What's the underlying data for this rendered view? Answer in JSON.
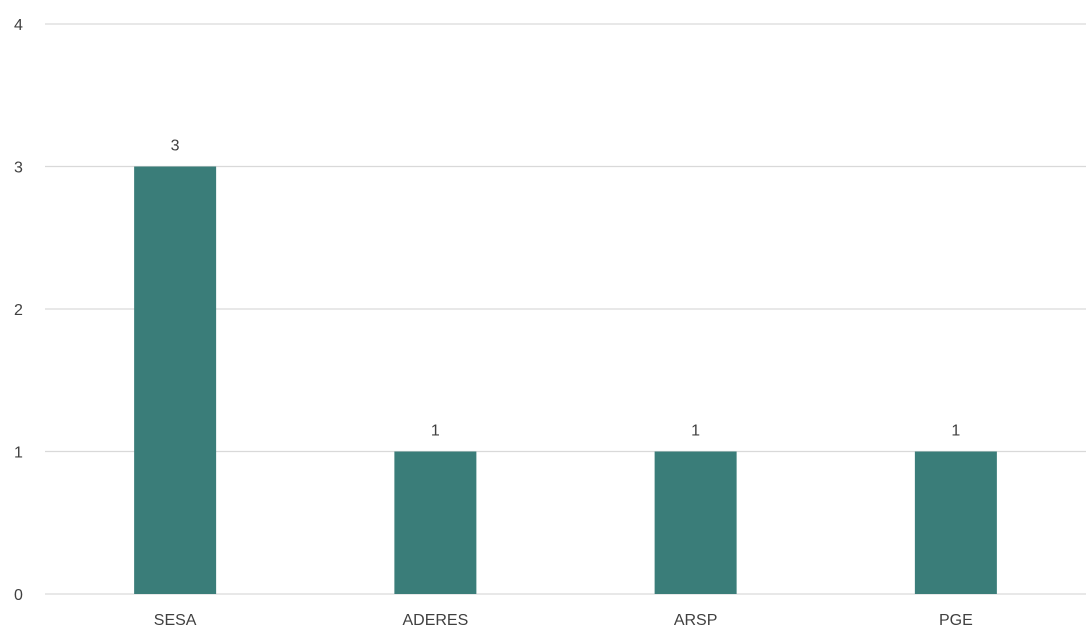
{
  "chart_data": {
    "type": "bar",
    "categories": [
      "SESA",
      "ADERES",
      "ARSP",
      "PGE"
    ],
    "values": [
      3,
      1,
      1,
      1
    ],
    "data_labels": [
      "3",
      "1",
      "1",
      "1"
    ],
    "ylim": [
      0,
      4
    ],
    "yticks": [
      0,
      1,
      2,
      3,
      4
    ],
    "ytick_labels": [
      "0",
      "1",
      "2",
      "3",
      "4"
    ],
    "grid": true,
    "legend": "none",
    "bar_color": "#3a7d79",
    "gridline_color": "#d9d9d9",
    "text_color": "#404040"
  }
}
